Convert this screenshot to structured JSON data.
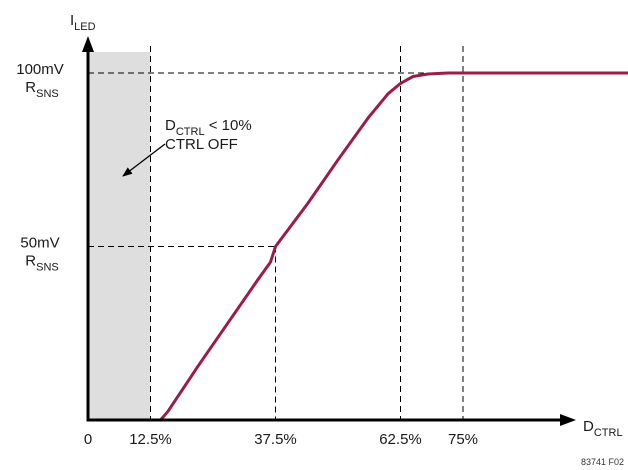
{
  "chart_data": {
    "type": "line",
    "y_axis_label": {
      "main": "I",
      "sub": "LED"
    },
    "x_axis_label": {
      "main": "D",
      "sub": "CTRL"
    },
    "x_ticks": [
      {
        "value": 0,
        "label": "0"
      },
      {
        "value": 12.5,
        "label": "12.5%"
      },
      {
        "value": 37.5,
        "label": "37.5%"
      },
      {
        "value": 62.5,
        "label": "62.5%"
      },
      {
        "value": 75,
        "label": "75%"
      }
    ],
    "y_ticks": [
      {
        "value": 50,
        "label_top": "50mV",
        "label_bottom_main": "R",
        "label_bottom_sub": "SNS"
      },
      {
        "value": 100,
        "label_top": "100mV",
        "label_bottom_main": "R",
        "label_bottom_sub": "SNS"
      }
    ],
    "xlim": [
      0,
      120
    ],
    "ylim": [
      0,
      120
    ],
    "shaded_region": {
      "x_from": 0,
      "x_to": 12.5
    },
    "annotation": {
      "line1_main": "D",
      "line1_sub": "CTRL",
      "line1_rest": " < 10%",
      "line2": "CTRL OFF"
    },
    "series": [
      {
        "color": "#9b1b4a",
        "x": [
          14.5,
          16,
          22,
          28,
          34,
          36.5,
          37.5,
          44,
          50,
          56,
          60,
          62.5,
          65,
          68,
          72,
          75,
          120
        ],
        "y": [
          0,
          2.5,
          15.5,
          28,
          40.5,
          45.5,
          50,
          62.5,
          75,
          87,
          94,
          97,
          99,
          99.7,
          100,
          100,
          100
        ]
      }
    ],
    "figure_id": "83741 F02"
  }
}
